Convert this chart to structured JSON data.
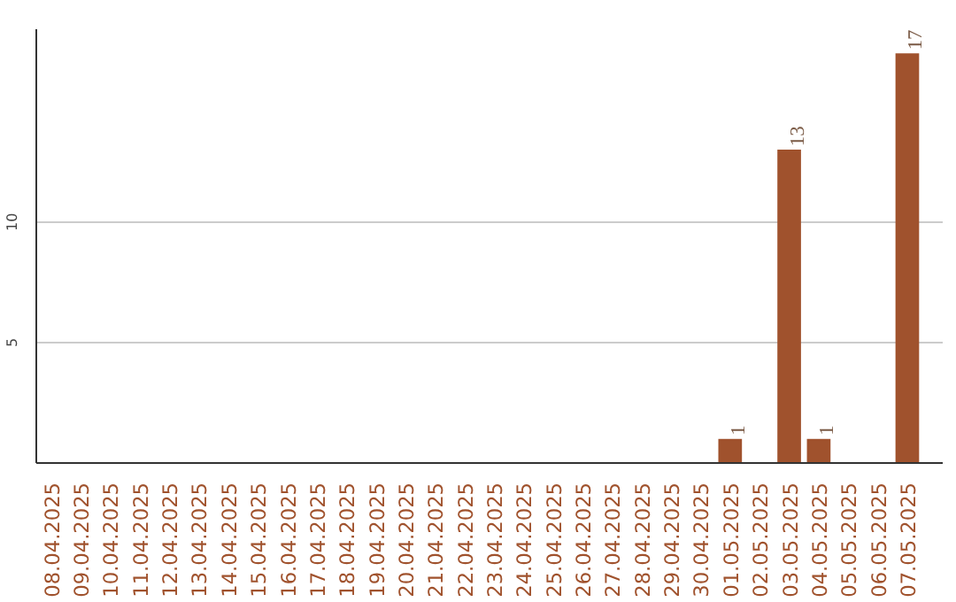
{
  "chart_data": {
    "type": "bar",
    "categories": [
      "08.04.2025",
      "09.04.2025",
      "10.04.2025",
      "11.04.2025",
      "12.04.2025",
      "13.04.2025",
      "14.04.2025",
      "15.04.2025",
      "16.04.2025",
      "17.04.2025",
      "18.04.2025",
      "19.04.2025",
      "20.04.2025",
      "21.04.2025",
      "22.04.2025",
      "23.04.2025",
      "24.04.2025",
      "25.04.2025",
      "26.04.2025",
      "27.04.2025",
      "28.04.2025",
      "29.04.2025",
      "30.04.2025",
      "01.05.2025",
      "02.05.2025",
      "03.05.2025",
      "04.05.2025",
      "05.05.2025",
      "06.05.2025",
      "07.05.2025"
    ],
    "values": [
      0,
      0,
      0,
      0,
      0,
      0,
      0,
      0,
      0,
      0,
      0,
      0,
      0,
      0,
      0,
      0,
      0,
      0,
      0,
      0,
      0,
      0,
      0,
      1,
      0,
      13,
      1,
      0,
      0,
      17
    ],
    "value_labels": [
      null,
      null,
      null,
      null,
      null,
      null,
      null,
      null,
      null,
      null,
      null,
      null,
      null,
      null,
      null,
      null,
      null,
      null,
      null,
      null,
      null,
      null,
      null,
      "1",
      null,
      "13",
      "1",
      null,
      null,
      "17"
    ],
    "color": "#a0522d",
    "ylim": [
      0,
      18
    ],
    "yticks": [
      5,
      10
    ],
    "grid": "y"
  }
}
